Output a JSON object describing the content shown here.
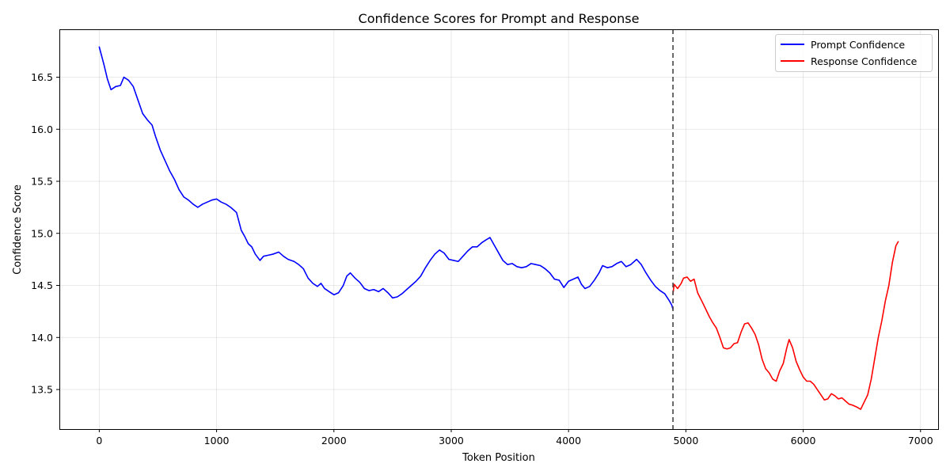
{
  "chart_data": {
    "type": "line",
    "title": "Confidence Scores for Prompt and Response",
    "xlabel": "Token Position",
    "ylabel": "Confidence Score",
    "xlim": [
      -340,
      7150
    ],
    "ylim": [
      13.12,
      16.96
    ],
    "xticks": [
      0,
      1000,
      2000,
      3000,
      4000,
      5000,
      6000,
      7000
    ],
    "yticks": [
      13.5,
      14.0,
      14.5,
      15.0,
      15.5,
      16.0,
      16.5
    ],
    "xtick_labels": [
      "0",
      "1000",
      "2000",
      "3000",
      "4000",
      "5000",
      "6000",
      "7000"
    ],
    "ytick_labels": [
      "13.5",
      "14.0",
      "14.5",
      "15.0",
      "15.5",
      "16.0",
      "16.5"
    ],
    "grid": true,
    "legend_position": "top-right",
    "boundary_x": 4890,
    "series": [
      {
        "name": "Prompt Confidence",
        "color": "#0000ff",
        "points": [
          [
            0,
            16.79
          ],
          [
            40,
            16.62
          ],
          [
            70,
            16.48
          ],
          [
            100,
            16.38
          ],
          [
            140,
            16.41
          ],
          [
            180,
            16.42
          ],
          [
            210,
            16.5
          ],
          [
            250,
            16.47
          ],
          [
            290,
            16.41
          ],
          [
            330,
            16.28
          ],
          [
            370,
            16.15
          ],
          [
            410,
            16.09
          ],
          [
            450,
            16.04
          ],
          [
            480,
            15.93
          ],
          [
            520,
            15.8
          ],
          [
            560,
            15.7
          ],
          [
            600,
            15.6
          ],
          [
            640,
            15.52
          ],
          [
            680,
            15.42
          ],
          [
            720,
            15.35
          ],
          [
            760,
            15.32
          ],
          [
            800,
            15.28
          ],
          [
            840,
            15.25
          ],
          [
            880,
            15.28
          ],
          [
            920,
            15.3
          ],
          [
            960,
            15.32
          ],
          [
            1000,
            15.33
          ],
          [
            1040,
            15.3
          ],
          [
            1080,
            15.28
          ],
          [
            1120,
            15.25
          ],
          [
            1170,
            15.2
          ],
          [
            1210,
            15.03
          ],
          [
            1240,
            14.97
          ],
          [
            1270,
            14.9
          ],
          [
            1300,
            14.87
          ],
          [
            1330,
            14.8
          ],
          [
            1370,
            14.74
          ],
          [
            1400,
            14.78
          ],
          [
            1440,
            14.79
          ],
          [
            1480,
            14.8
          ],
          [
            1530,
            14.82
          ],
          [
            1570,
            14.78
          ],
          [
            1610,
            14.75
          ],
          [
            1660,
            14.73
          ],
          [
            1700,
            14.7
          ],
          [
            1740,
            14.66
          ],
          [
            1780,
            14.57
          ],
          [
            1820,
            14.52
          ],
          [
            1860,
            14.49
          ],
          [
            1890,
            14.52
          ],
          [
            1920,
            14.47
          ],
          [
            1960,
            14.44
          ],
          [
            2000,
            14.41
          ],
          [
            2040,
            14.43
          ],
          [
            2080,
            14.5
          ],
          [
            2110,
            14.59
          ],
          [
            2140,
            14.62
          ],
          [
            2180,
            14.57
          ],
          [
            2220,
            14.53
          ],
          [
            2260,
            14.47
          ],
          [
            2300,
            14.45
          ],
          [
            2340,
            14.46
          ],
          [
            2380,
            14.44
          ],
          [
            2420,
            14.47
          ],
          [
            2460,
            14.43
          ],
          [
            2500,
            14.38
          ],
          [
            2540,
            14.39
          ],
          [
            2580,
            14.42
          ],
          [
            2620,
            14.46
          ],
          [
            2660,
            14.5
          ],
          [
            2700,
            14.54
          ],
          [
            2740,
            14.59
          ],
          [
            2780,
            14.67
          ],
          [
            2820,
            14.74
          ],
          [
            2860,
            14.8
          ],
          [
            2900,
            14.84
          ],
          [
            2940,
            14.81
          ],
          [
            2980,
            14.75
          ],
          [
            3020,
            14.74
          ],
          [
            3060,
            14.73
          ],
          [
            3100,
            14.78
          ],
          [
            3140,
            14.83
          ],
          [
            3180,
            14.87
          ],
          [
            3220,
            14.87
          ],
          [
            3260,
            14.91
          ],
          [
            3300,
            14.94
          ],
          [
            3330,
            14.96
          ],
          [
            3360,
            14.9
          ],
          [
            3400,
            14.82
          ],
          [
            3440,
            14.74
          ],
          [
            3480,
            14.7
          ],
          [
            3520,
            14.71
          ],
          [
            3560,
            14.68
          ],
          [
            3600,
            14.67
          ],
          [
            3640,
            14.68
          ],
          [
            3680,
            14.71
          ],
          [
            3720,
            14.7
          ],
          [
            3760,
            14.69
          ],
          [
            3800,
            14.66
          ],
          [
            3840,
            14.62
          ],
          [
            3880,
            14.56
          ],
          [
            3920,
            14.55
          ],
          [
            3960,
            14.48
          ],
          [
            4000,
            14.54
          ],
          [
            4040,
            14.56
          ],
          [
            4080,
            14.58
          ],
          [
            4110,
            14.51
          ],
          [
            4140,
            14.47
          ],
          [
            4180,
            14.49
          ],
          [
            4220,
            14.55
          ],
          [
            4260,
            14.62
          ],
          [
            4290,
            14.69
          ],
          [
            4330,
            14.67
          ],
          [
            4370,
            14.68
          ],
          [
            4410,
            14.71
          ],
          [
            4450,
            14.73
          ],
          [
            4490,
            14.68
          ],
          [
            4530,
            14.7
          ],
          [
            4580,
            14.75
          ],
          [
            4620,
            14.7
          ],
          [
            4660,
            14.62
          ],
          [
            4700,
            14.55
          ],
          [
            4740,
            14.49
          ],
          [
            4780,
            14.45
          ],
          [
            4820,
            14.42
          ],
          [
            4860,
            14.35
          ],
          [
            4880,
            14.31
          ],
          [
            4890,
            14.27
          ]
        ]
      },
      {
        "name": "Response Confidence",
        "color": "#ff0000",
        "points": [
          [
            4890,
            14.42
          ],
          [
            4900,
            14.51
          ],
          [
            4930,
            14.47
          ],
          [
            4960,
            14.52
          ],
          [
            4980,
            14.57
          ],
          [
            5010,
            14.58
          ],
          [
            5040,
            14.54
          ],
          [
            5070,
            14.56
          ],
          [
            5100,
            14.43
          ],
          [
            5140,
            14.34
          ],
          [
            5170,
            14.27
          ],
          [
            5200,
            14.2
          ],
          [
            5230,
            14.14
          ],
          [
            5260,
            14.09
          ],
          [
            5290,
            14.0
          ],
          [
            5320,
            13.9
          ],
          [
            5350,
            13.89
          ],
          [
            5380,
            13.9
          ],
          [
            5410,
            13.94
          ],
          [
            5440,
            13.95
          ],
          [
            5470,
            14.05
          ],
          [
            5500,
            14.13
          ],
          [
            5530,
            14.14
          ],
          [
            5560,
            14.09
          ],
          [
            5590,
            14.03
          ],
          [
            5620,
            13.93
          ],
          [
            5650,
            13.79
          ],
          [
            5680,
            13.7
          ],
          [
            5710,
            13.66
          ],
          [
            5740,
            13.6
          ],
          [
            5770,
            13.58
          ],
          [
            5800,
            13.68
          ],
          [
            5830,
            13.75
          ],
          [
            5860,
            13.9
          ],
          [
            5880,
            13.98
          ],
          [
            5910,
            13.9
          ],
          [
            5940,
            13.77
          ],
          [
            5970,
            13.69
          ],
          [
            6000,
            13.62
          ],
          [
            6030,
            13.58
          ],
          [
            6060,
            13.58
          ],
          [
            6090,
            13.55
          ],
          [
            6120,
            13.5
          ],
          [
            6150,
            13.45
          ],
          [
            6180,
            13.4
          ],
          [
            6210,
            13.41
          ],
          [
            6240,
            13.46
          ],
          [
            6270,
            13.44
          ],
          [
            6300,
            13.41
          ],
          [
            6330,
            13.42
          ],
          [
            6360,
            13.39
          ],
          [
            6390,
            13.36
          ],
          [
            6420,
            13.35
          ],
          [
            6460,
            13.33
          ],
          [
            6490,
            13.31
          ],
          [
            6520,
            13.38
          ],
          [
            6550,
            13.45
          ],
          [
            6580,
            13.6
          ],
          [
            6610,
            13.8
          ],
          [
            6640,
            14.0
          ],
          [
            6670,
            14.16
          ],
          [
            6700,
            14.35
          ],
          [
            6730,
            14.5
          ],
          [
            6760,
            14.72
          ],
          [
            6790,
            14.88
          ],
          [
            6810,
            14.92
          ]
        ]
      }
    ]
  }
}
